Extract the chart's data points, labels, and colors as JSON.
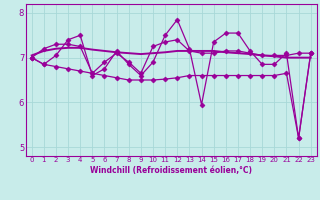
{
  "xlabel": "Windchill (Refroidissement éolien,°C)",
  "xlim": [
    -0.5,
    23.5
  ],
  "ylim": [
    4.8,
    8.2
  ],
  "yticks": [
    5,
    6,
    7,
    8
  ],
  "xticks": [
    0,
    1,
    2,
    3,
    4,
    5,
    6,
    7,
    8,
    9,
    10,
    11,
    12,
    13,
    14,
    15,
    16,
    17,
    18,
    19,
    20,
    21,
    22,
    23
  ],
  "background_color": "#c8ecea",
  "line_color": "#990099",
  "grid_color": "#a8d8d8",
  "series": [
    [
      7.0,
      6.85,
      7.05,
      7.4,
      7.5,
      6.6,
      6.75,
      7.15,
      6.85,
      6.6,
      6.9,
      7.5,
      7.85,
      7.2,
      5.95,
      7.35,
      7.55,
      7.55,
      7.15,
      6.85,
      6.85,
      7.1,
      5.2,
      7.1
    ],
    [
      7.0,
      7.2,
      7.3,
      7.3,
      7.25,
      6.65,
      6.9,
      7.1,
      6.9,
      6.65,
      7.25,
      7.35,
      7.4,
      7.15,
      7.1,
      7.1,
      7.15,
      7.15,
      7.1,
      7.05,
      7.05,
      7.05,
      7.1,
      7.1
    ],
    [
      7.05,
      7.15,
      7.2,
      7.22,
      7.22,
      7.18,
      7.15,
      7.12,
      7.1,
      7.08,
      7.1,
      7.12,
      7.15,
      7.15,
      7.15,
      7.15,
      7.12,
      7.1,
      7.08,
      7.05,
      7.03,
      7.0,
      7.0,
      7.0
    ],
    [
      7.0,
      6.85,
      6.8,
      6.75,
      6.7,
      6.65,
      6.6,
      6.55,
      6.5,
      6.5,
      6.5,
      6.52,
      6.55,
      6.6,
      6.6,
      6.6,
      6.6,
      6.6,
      6.6,
      6.6,
      6.6,
      6.65,
      5.2,
      7.1
    ]
  ],
  "series_has_marker": [
    true,
    true,
    false,
    true
  ],
  "marker": "D",
  "markersize": 2.5,
  "linewidth": 0.9
}
